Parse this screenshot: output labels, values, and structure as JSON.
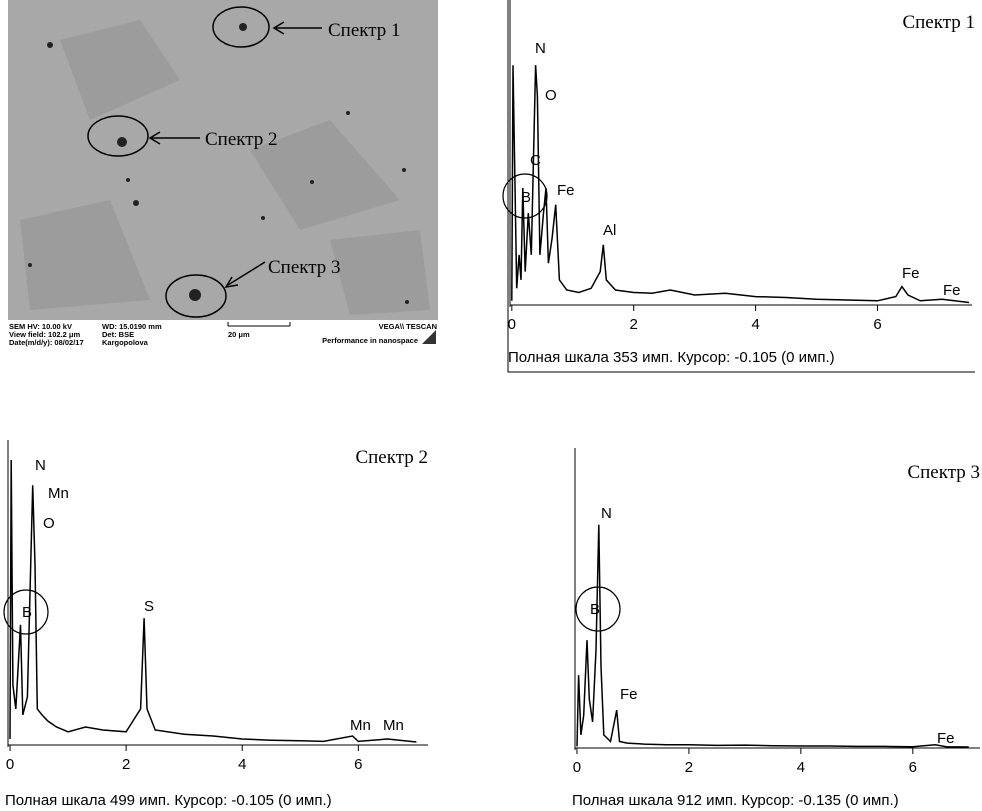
{
  "sem_image": {
    "labels": [
      "Спектр 1",
      "Спектр 2",
      "Спектр 3"
    ],
    "footer": [
      "SEM HV: 10.00 kV",
      "WD: 15.0190 mm",
      "VEGA\\\\ TESCAN",
      "View field: 102.2 μm",
      "Det: BSE",
      "20 μm",
      "Date(m/d/y): 08/02/17",
      "Kargopolova",
      "Performance in nanospace"
    ]
  },
  "chart_data": [
    {
      "type": "line",
      "title": "Спектр 1",
      "caption": "Полная шкала 353 имп. Курсор: -0.105  (0 имп.)",
      "color": "#000000",
      "x": [
        0.0,
        0.02,
        0.05,
        0.08,
        0.12,
        0.15,
        0.18,
        0.22,
        0.27,
        0.32,
        0.39,
        0.42,
        0.46,
        0.52,
        0.56,
        0.6,
        0.66,
        0.72,
        0.78,
        0.9,
        1.1,
        1.3,
        1.45,
        1.5,
        1.55,
        1.7,
        2.0,
        2.3,
        2.6,
        3.0,
        3.5,
        4.0,
        4.5,
        5.0,
        5.5,
        6.0,
        6.3,
        6.4,
        6.5,
        6.7,
        7.06,
        7.5
      ],
      "values": [
        5,
        287,
        150,
        20,
        60,
        30,
        140,
        40,
        110,
        60,
        287,
        250,
        60,
        110,
        140,
        50,
        80,
        120,
        30,
        18,
        15,
        20,
        40,
        72,
        30,
        18,
        15,
        14,
        18,
        12,
        14,
        10,
        9,
        7,
        6,
        5,
        10,
        22,
        12,
        5,
        7,
        3
      ],
      "xlim": [
        -0.03,
        7.55
      ],
      "ylim": [
        0,
        353
      ],
      "xticks": [
        0,
        2,
        4,
        6
      ],
      "peak_labels": [
        "N",
        "O",
        "C",
        "Fe",
        "Al",
        "B",
        "Fe",
        "Fe"
      ]
    },
    {
      "type": "line",
      "title": "Спектр 2",
      "caption": "Полная шкала 499 имп. Курсор: -0.105  (0 имп.)",
      "color": "#000000",
      "x": [
        0.0,
        0.02,
        0.05,
        0.1,
        0.18,
        0.22,
        0.3,
        0.39,
        0.43,
        0.47,
        0.55,
        0.65,
        0.8,
        1.0,
        1.3,
        1.6,
        2.0,
        2.25,
        2.31,
        2.36,
        2.5,
        3.0,
        3.5,
        4.0,
        4.5,
        5.0,
        5.4,
        5.9,
        6.0,
        6.5,
        7.0
      ],
      "values": [
        10,
        474,
        100,
        60,
        200,
        50,
        80,
        432,
        300,
        60,
        50,
        40,
        30,
        22,
        30,
        25,
        22,
        60,
        211,
        60,
        25,
        18,
        15,
        10,
        8,
        7,
        6,
        15,
        6,
        10,
        5
      ],
      "xlim": [
        -0.035,
        7.2
      ],
      "ylim": [
        0,
        499
      ],
      "xticks": [
        0,
        2,
        4,
        6
      ],
      "peak_labels": [
        "N",
        "Mn",
        "O",
        "B",
        "S",
        "Mn",
        "Mn"
      ]
    },
    {
      "type": "line",
      "title": "Спектр 3",
      "caption": "Полная шкала 912 имп. Курсор: -0.135  (0 имп.)",
      "color": "#000000",
      "x": [
        0.0,
        0.03,
        0.07,
        0.12,
        0.18,
        0.22,
        0.28,
        0.34,
        0.39,
        0.43,
        0.48,
        0.6,
        0.71,
        0.76,
        0.9,
        1.2,
        1.6,
        2.0,
        2.5,
        3.0,
        3.5,
        4.0,
        4.5,
        5.0,
        5.5,
        6.0,
        6.4,
        6.6,
        7.0
      ],
      "values": [
        5,
        223,
        40,
        100,
        330,
        150,
        80,
        300,
        683,
        250,
        40,
        20,
        116,
        20,
        15,
        12,
        10,
        10,
        8,
        9,
        7,
        6,
        6,
        5,
        5,
        4,
        10,
        4,
        3
      ],
      "xlim": [
        -0.035,
        7.2
      ],
      "ylim": [
        0,
        912
      ],
      "xticks": [
        0,
        2,
        4,
        6
      ],
      "peak_labels": [
        "N",
        "B",
        "Fe",
        "Fe"
      ]
    }
  ]
}
